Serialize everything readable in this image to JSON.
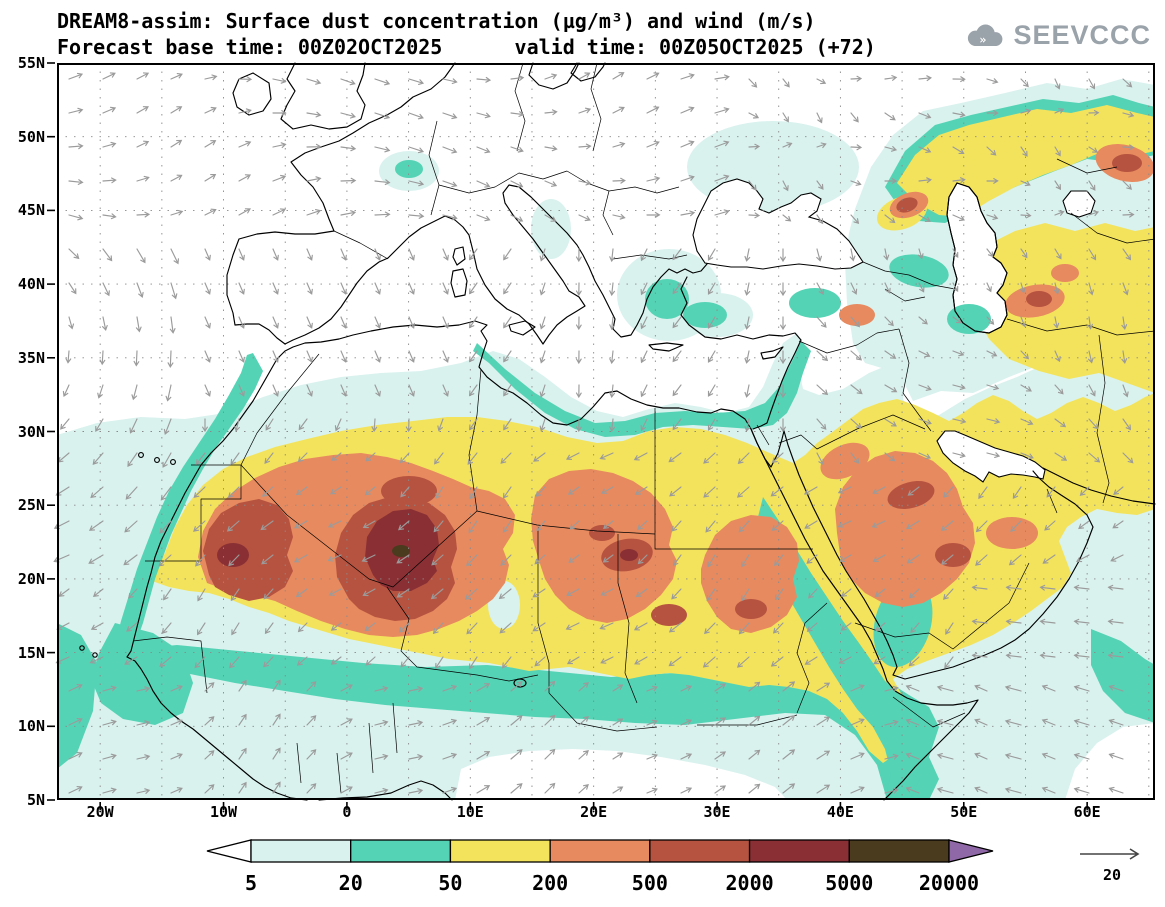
{
  "header": {
    "title": "DREAM8-assim: Surface dust concentration (µg/m³) and wind (m/s)",
    "subtitle": "Forecast base time: 00Z02OCT2025      valid time: 00Z05OCT2025 (+72)"
  },
  "logo": {
    "text": "SEEVCCC"
  },
  "axes": {
    "lat_labels": [
      "55N",
      "50N",
      "45N",
      "40N",
      "35N",
      "30N",
      "25N",
      "20N",
      "15N",
      "10N",
      "5N"
    ],
    "lon_labels": [
      "20W",
      "10W",
      "0",
      "10E",
      "20E",
      "30E",
      "40E",
      "50E",
      "60E"
    ]
  },
  "colorbar": {
    "labels": [
      "5",
      "20",
      "50",
      "200",
      "500",
      "2000",
      "5000",
      "20000"
    ],
    "segment_colors": [
      "#d9f2ee",
      "#55d3b5",
      "#f3e35c",
      "#e78a5f",
      "#b65340",
      "#8a3034",
      "#4a3b1f"
    ],
    "underflow_color": "#ffffff",
    "overflow_color": "#8f68a8"
  },
  "wind_reference": {
    "label": "20"
  },
  "chart_data": {
    "type": "heatmap",
    "subtype": "filled-contour geographic map with wind vector overlay",
    "model": "DREAM8-assim",
    "variable": "Surface dust concentration",
    "units": "µg/m³",
    "wind_units": "m/s",
    "forecast_base_time": "00Z02OCT2025",
    "valid_time": "00Z05OCT2025",
    "lead": "+72",
    "lon_range": [
      -23.5,
      65.5
    ],
    "lat_range": [
      5,
      55
    ],
    "lon_tick_values": [
      -20,
      -10,
      0,
      10,
      20,
      30,
      40,
      50,
      60
    ],
    "lat_tick_values": [
      55,
      50,
      45,
      40,
      35,
      30,
      25,
      20,
      15,
      10,
      5
    ],
    "contour_levels_ugm3": [
      5,
      20,
      50,
      200,
      500,
      2000,
      5000,
      20000
    ],
    "palette": {
      "5_20": "#d9f2ee",
      "20_50": "#55d3b5",
      "50_200": "#f3e35c",
      "200_500": "#e78a5f",
      "500_2000": "#b65340",
      "2000_5000": "#8a3034",
      "5000_20000": "#4a3b1f",
      "above_20000": "#8f68a8"
    },
    "wind_reference_ms": 20,
    "graticule_deg": 5,
    "max_regions": [
      {
        "region": "Mali / southern Algeria",
        "level_ugm3": "2000-5000"
      },
      {
        "region": "central Mauritania",
        "level_ugm3": "2000-5000"
      },
      {
        "region": "central Sahara (S Libya / Niger / Chad)",
        "level_ugm3": "500-2000"
      },
      {
        "region": "Sudan",
        "level_ugm3": "500-2000"
      },
      {
        "region": "central Arabian Peninsula",
        "level_ugm3": "500-2000"
      },
      {
        "region": "east of the Caspian Sea",
        "level_ugm3": "500-2000"
      }
    ]
  }
}
